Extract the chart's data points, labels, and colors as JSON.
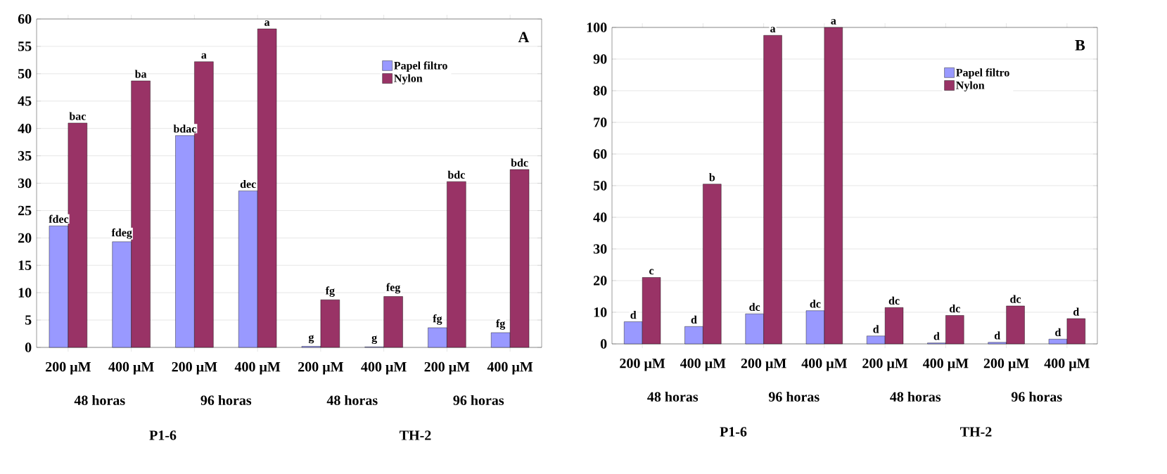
{
  "chart_data": [
    {
      "type": "bar",
      "title": "A",
      "categories": [
        "200 µM",
        "400 µM",
        "200 µM",
        "400 µM",
        "200 µM",
        "400 µM",
        "200 µM",
        "400 µM"
      ],
      "series": [
        {
          "name": "Papel filtro",
          "color": "#9999ff",
          "values": [
            22.2,
            19.3,
            38.7,
            28.6,
            0.2,
            0.1,
            3.6,
            2.7
          ],
          "value_labels": [
            "fdec",
            "fdeg",
            "bdac",
            "dec",
            "g",
            "g",
            "fg",
            "fg"
          ]
        },
        {
          "name": "Nylon",
          "color": "#993366",
          "values": [
            41,
            48.7,
            52.2,
            58.2,
            8.7,
            9.3,
            30.3,
            32.5
          ],
          "value_labels": [
            "bac",
            "ba",
            "a",
            "a",
            "fg",
            "feg",
            "bdc",
            "bdc"
          ]
        }
      ],
      "ylim": [
        0,
        60
      ],
      "yticks": [
        0,
        5,
        10,
        15,
        20,
        25,
        30,
        35,
        40,
        45,
        50,
        55,
        60
      ],
      "grid": "y",
      "legend": "top right",
      "annotations": [
        "48 horas",
        "96 horas",
        "48 horas",
        "96 horas",
        "P1-6",
        "TH-2"
      ]
    },
    {
      "type": "bar",
      "title": "B",
      "categories": [
        "200 µM",
        "400 µM",
        "200 µM",
        "400 µM",
        "200 µM",
        "400 µM",
        "200 µM",
        "400 µM"
      ],
      "series": [
        {
          "name": "Papel filtro",
          "color": "#9999ff",
          "values": [
            7,
            5.5,
            9.5,
            10.5,
            2.5,
            0.3,
            0.5,
            1.5
          ],
          "value_labels": [
            "d",
            "d",
            "dc",
            "dc",
            "d",
            "d",
            "d",
            "d"
          ]
        },
        {
          "name": "Nylon",
          "color": "#993366",
          "values": [
            21,
            50.5,
            97.5,
            100,
            11.5,
            9,
            12,
            8
          ],
          "value_labels": [
            "c",
            "b",
            "a",
            "a",
            "dc",
            "dc",
            "dc",
            "d"
          ]
        }
      ],
      "ylim": [
        0,
        100
      ],
      "yticks": [
        0,
        10,
        20,
        30,
        40,
        50,
        60,
        70,
        80,
        90,
        100
      ],
      "grid": "y",
      "legend": "top right",
      "annotations": [
        "48 horas",
        "96 horas",
        "48 horas",
        "96 horas",
        "P1-6",
        "TH-2"
      ]
    }
  ]
}
